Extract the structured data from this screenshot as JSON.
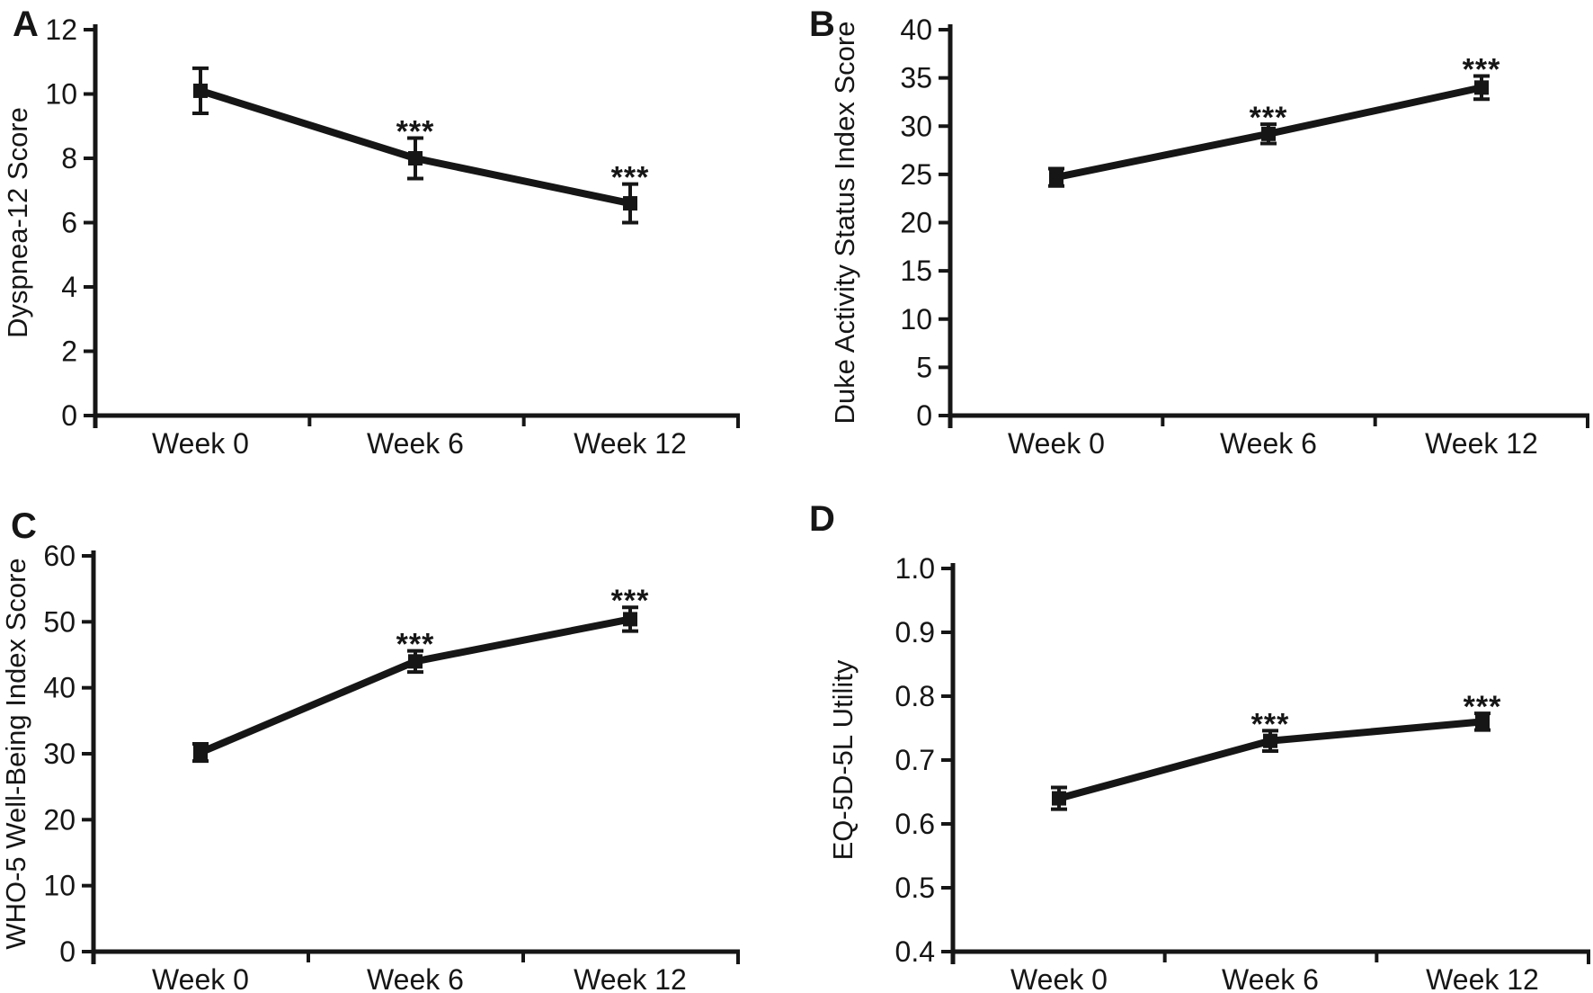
{
  "canvas": {
    "background": "#ffffff",
    "ink": "#161616"
  },
  "chart_data": [
    {
      "type": "line",
      "panel": "A",
      "title": "",
      "xlabel": "",
      "ylabel": "Dyspnea-12 Score",
      "categories": [
        "Week 0",
        "Week 6",
        "Week 12"
      ],
      "values": [
        10.1,
        8.0,
        6.6
      ],
      "errors": [
        0.7,
        0.63,
        0.6
      ],
      "annotations": [
        "",
        "***",
        "***"
      ],
      "ylim": [
        0,
        12
      ],
      "ytick_step": 2,
      "ytick_decimals": 0,
      "grid": false,
      "legend": false,
      "marker": "square"
    },
    {
      "type": "line",
      "panel": "B",
      "title": "",
      "xlabel": "",
      "ylabel": "Duke Activity Status Index Score",
      "categories": [
        "Week 0",
        "Week 6",
        "Week 12"
      ],
      "values": [
        24.7,
        29.2,
        34.0
      ],
      "errors": [
        0.9,
        1.0,
        1.2
      ],
      "annotations": [
        "",
        "***",
        "***"
      ],
      "ylim": [
        0,
        40
      ],
      "ytick_step": 5,
      "ytick_decimals": 0,
      "grid": false,
      "legend": false,
      "marker": "square"
    },
    {
      "type": "line",
      "panel": "C",
      "title": "",
      "xlabel": "",
      "ylabel": "WHO-5 Well-Being Index Score",
      "categories": [
        "Week 0",
        "Week 6",
        "Week 12"
      ],
      "values": [
        30.2,
        44.0,
        50.4
      ],
      "errors": [
        1.3,
        1.6,
        1.8
      ],
      "annotations": [
        "",
        "***",
        "***"
      ],
      "ylim": [
        0,
        60
      ],
      "ytick_step": 10,
      "ytick_decimals": 0,
      "grid": false,
      "legend": false,
      "marker": "square"
    },
    {
      "type": "line",
      "panel": "D",
      "title": "",
      "xlabel": "",
      "ylabel": "EQ-5D-5L Utility",
      "categories": [
        "Week 0",
        "Week 6",
        "Week 12"
      ],
      "values": [
        0.64,
        0.73,
        0.76
      ],
      "errors": [
        0.017,
        0.016,
        0.013
      ],
      "annotations": [
        "",
        "***",
        "***"
      ],
      "ylim": [
        0.4,
        1.0
      ],
      "ytick_step": 0.1,
      "ytick_decimals": 1,
      "grid": false,
      "legend": false,
      "marker": "square"
    }
  ]
}
